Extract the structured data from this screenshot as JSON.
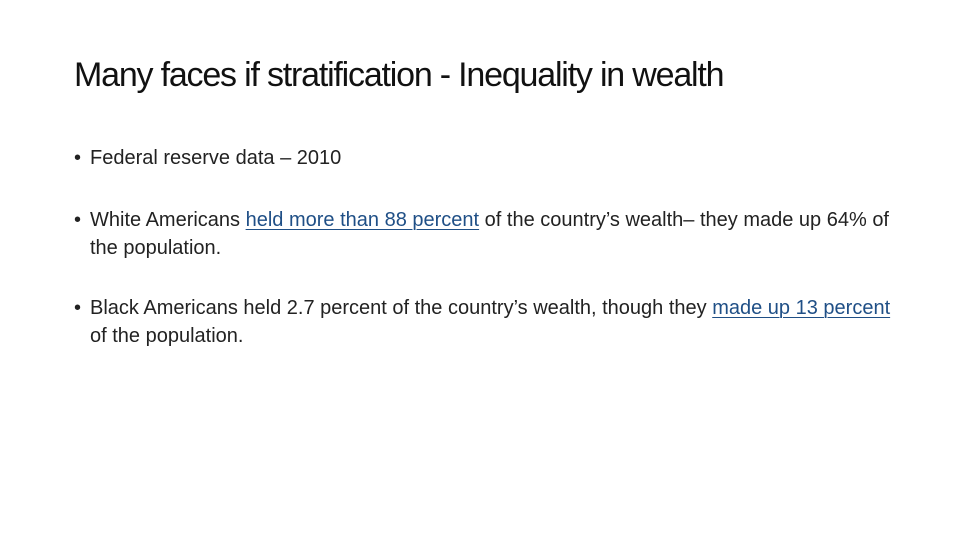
{
  "slide": {
    "title": "Many faces if stratification - Inequality in wealth",
    "bullet_char": "•",
    "bullets": [
      {
        "text": "Federal reserve data – 2010"
      },
      {
        "before": "White Americans ",
        "link": "held more than 88 percent",
        "after": " of the country’s  wealth– they made up 64% of the population."
      },
      {
        "before": "Black Americans held 2.7 percent of the country’s wealth, though they ",
        "link": "made up 13 percent",
        "after": " of the population."
      }
    ]
  },
  "colors": {
    "link": "#1f4f86",
    "text": "#222222",
    "title": "#111111"
  }
}
